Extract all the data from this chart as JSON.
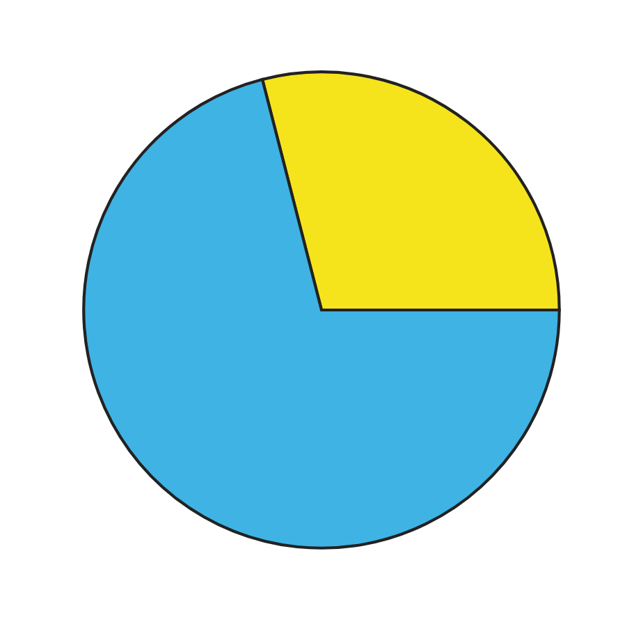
{
  "chart_data": {
    "type": "pie",
    "categories": [
      null,
      null
    ],
    "values": [
      29,
      71
    ],
    "colors": [
      "#f5e41c",
      "#3fb3e4"
    ]
  }
}
